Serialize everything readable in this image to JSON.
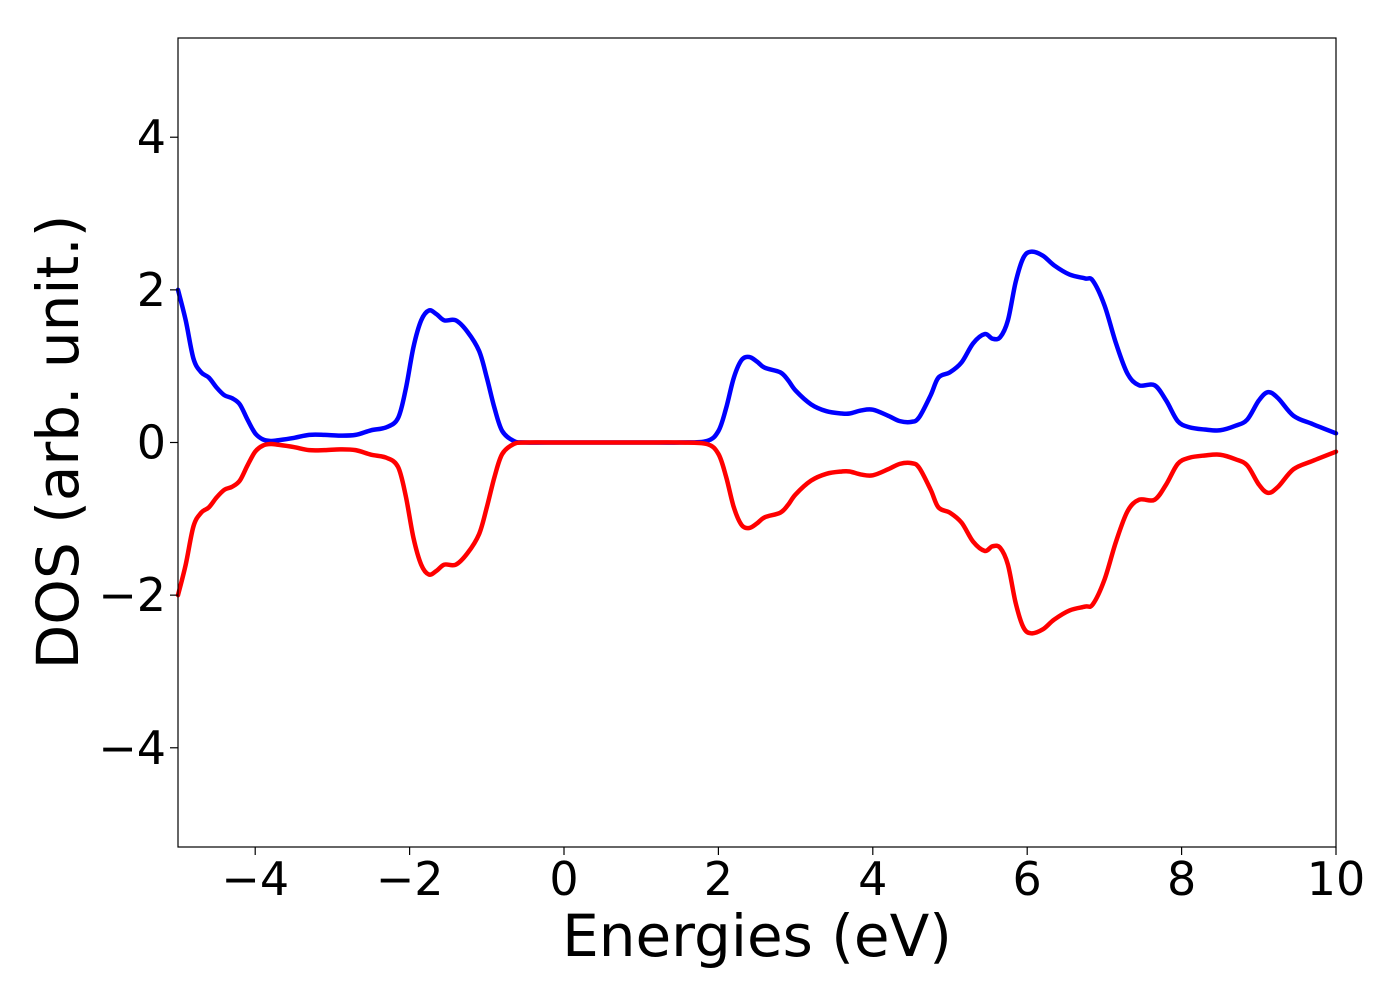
{
  "chart_data": {
    "type": "line",
    "title": "",
    "xlabel": "Energies (eV)",
    "ylabel": "DOS (arb. unit.)",
    "xlim": [
      -5,
      10
    ],
    "ylim": [
      -5.3,
      5.3
    ],
    "xticks": [
      -4,
      -2,
      0,
      2,
      4,
      6,
      8,
      10
    ],
    "xtick_labels": [
      "−4",
      "−2",
      "0",
      "2",
      "4",
      "6",
      "8",
      "10"
    ],
    "yticks": [
      -4,
      -2,
      0,
      2,
      4
    ],
    "ytick_labels": [
      "−4",
      "−2",
      "0",
      "2",
      "4"
    ],
    "grid": false,
    "legend": "none",
    "series": [
      {
        "color": "#0000ff",
        "points": [
          [
            -5.0,
            2.0
          ],
          [
            -4.9,
            1.6
          ],
          [
            -4.8,
            1.1
          ],
          [
            -4.7,
            0.92
          ],
          [
            -4.6,
            0.85
          ],
          [
            -4.5,
            0.72
          ],
          [
            -4.4,
            0.62
          ],
          [
            -4.3,
            0.58
          ],
          [
            -4.2,
            0.5
          ],
          [
            -4.1,
            0.3
          ],
          [
            -4.0,
            0.12
          ],
          [
            -3.9,
            0.04
          ],
          [
            -3.8,
            0.02
          ],
          [
            -3.7,
            0.03
          ],
          [
            -3.5,
            0.06
          ],
          [
            -3.3,
            0.1
          ],
          [
            -3.1,
            0.1
          ],
          [
            -2.9,
            0.09
          ],
          [
            -2.7,
            0.1
          ],
          [
            -2.5,
            0.16
          ],
          [
            -2.3,
            0.2
          ],
          [
            -2.15,
            0.32
          ],
          [
            -2.05,
            0.7
          ],
          [
            -1.95,
            1.25
          ],
          [
            -1.85,
            1.6
          ],
          [
            -1.75,
            1.73
          ],
          [
            -1.65,
            1.68
          ],
          [
            -1.55,
            1.6
          ],
          [
            -1.4,
            1.6
          ],
          [
            -1.25,
            1.45
          ],
          [
            -1.1,
            1.2
          ],
          [
            -1.0,
            0.85
          ],
          [
            -0.9,
            0.45
          ],
          [
            -0.8,
            0.15
          ],
          [
            -0.65,
            0.02
          ],
          [
            -0.5,
            0.0
          ],
          [
            0.0,
            0.0
          ],
          [
            0.5,
            0.0
          ],
          [
            1.0,
            0.0
          ],
          [
            1.5,
            0.0
          ],
          [
            1.85,
            0.02
          ],
          [
            2.0,
            0.15
          ],
          [
            2.1,
            0.45
          ],
          [
            2.2,
            0.85
          ],
          [
            2.3,
            1.08
          ],
          [
            2.4,
            1.12
          ],
          [
            2.5,
            1.06
          ],
          [
            2.6,
            0.98
          ],
          [
            2.8,
            0.92
          ],
          [
            2.9,
            0.82
          ],
          [
            3.0,
            0.68
          ],
          [
            3.2,
            0.5
          ],
          [
            3.4,
            0.41
          ],
          [
            3.6,
            0.38
          ],
          [
            3.7,
            0.38
          ],
          [
            3.85,
            0.42
          ],
          [
            4.0,
            0.43
          ],
          [
            4.2,
            0.35
          ],
          [
            4.35,
            0.28
          ],
          [
            4.5,
            0.27
          ],
          [
            4.6,
            0.33
          ],
          [
            4.75,
            0.62
          ],
          [
            4.85,
            0.85
          ],
          [
            5.0,
            0.92
          ],
          [
            5.15,
            1.05
          ],
          [
            5.3,
            1.3
          ],
          [
            5.45,
            1.42
          ],
          [
            5.55,
            1.36
          ],
          [
            5.65,
            1.38
          ],
          [
            5.75,
            1.6
          ],
          [
            5.85,
            2.1
          ],
          [
            5.95,
            2.42
          ],
          [
            6.05,
            2.5
          ],
          [
            6.2,
            2.45
          ],
          [
            6.35,
            2.32
          ],
          [
            6.55,
            2.2
          ],
          [
            6.75,
            2.15
          ],
          [
            6.85,
            2.12
          ],
          [
            7.0,
            1.8
          ],
          [
            7.15,
            1.3
          ],
          [
            7.3,
            0.9
          ],
          [
            7.45,
            0.75
          ],
          [
            7.65,
            0.75
          ],
          [
            7.8,
            0.55
          ],
          [
            7.95,
            0.28
          ],
          [
            8.1,
            0.2
          ],
          [
            8.3,
            0.17
          ],
          [
            8.5,
            0.16
          ],
          [
            8.7,
            0.22
          ],
          [
            8.85,
            0.3
          ],
          [
            9.0,
            0.55
          ],
          [
            9.12,
            0.66
          ],
          [
            9.25,
            0.58
          ],
          [
            9.45,
            0.35
          ],
          [
            9.7,
            0.24
          ],
          [
            10.0,
            0.12
          ]
        ]
      },
      {
        "color": "#ff0000",
        "points": [
          [
            -5.0,
            -2.0
          ],
          [
            -4.9,
            -1.6
          ],
          [
            -4.8,
            -1.1
          ],
          [
            -4.7,
            -0.92
          ],
          [
            -4.6,
            -0.85
          ],
          [
            -4.5,
            -0.72
          ],
          [
            -4.4,
            -0.62
          ],
          [
            -4.3,
            -0.58
          ],
          [
            -4.2,
            -0.5
          ],
          [
            -4.1,
            -0.3
          ],
          [
            -4.0,
            -0.12
          ],
          [
            -3.9,
            -0.04
          ],
          [
            -3.8,
            -0.02
          ],
          [
            -3.7,
            -0.03
          ],
          [
            -3.5,
            -0.06
          ],
          [
            -3.3,
            -0.1
          ],
          [
            -3.1,
            -0.1
          ],
          [
            -2.9,
            -0.09
          ],
          [
            -2.7,
            -0.1
          ],
          [
            -2.5,
            -0.16
          ],
          [
            -2.3,
            -0.2
          ],
          [
            -2.15,
            -0.32
          ],
          [
            -2.05,
            -0.7
          ],
          [
            -1.95,
            -1.25
          ],
          [
            -1.85,
            -1.6
          ],
          [
            -1.75,
            -1.73
          ],
          [
            -1.65,
            -1.68
          ],
          [
            -1.55,
            -1.6
          ],
          [
            -1.4,
            -1.6
          ],
          [
            -1.25,
            -1.45
          ],
          [
            -1.1,
            -1.2
          ],
          [
            -1.0,
            -0.85
          ],
          [
            -0.9,
            -0.45
          ],
          [
            -0.8,
            -0.15
          ],
          [
            -0.65,
            -0.02
          ],
          [
            -0.5,
            0.0
          ],
          [
            0.0,
            0.0
          ],
          [
            0.5,
            0.0
          ],
          [
            1.0,
            0.0
          ],
          [
            1.5,
            0.0
          ],
          [
            1.85,
            -0.02
          ],
          [
            2.0,
            -0.15
          ],
          [
            2.1,
            -0.45
          ],
          [
            2.2,
            -0.85
          ],
          [
            2.3,
            -1.08
          ],
          [
            2.4,
            -1.12
          ],
          [
            2.5,
            -1.06
          ],
          [
            2.6,
            -0.98
          ],
          [
            2.8,
            -0.92
          ],
          [
            2.9,
            -0.82
          ],
          [
            3.0,
            -0.68
          ],
          [
            3.2,
            -0.5
          ],
          [
            3.4,
            -0.41
          ],
          [
            3.6,
            -0.38
          ],
          [
            3.7,
            -0.38
          ],
          [
            3.85,
            -0.42
          ],
          [
            4.0,
            -0.43
          ],
          [
            4.2,
            -0.35
          ],
          [
            4.35,
            -0.28
          ],
          [
            4.5,
            -0.27
          ],
          [
            4.6,
            -0.33
          ],
          [
            4.75,
            -0.62
          ],
          [
            4.85,
            -0.85
          ],
          [
            5.0,
            -0.92
          ],
          [
            5.15,
            -1.05
          ],
          [
            5.3,
            -1.3
          ],
          [
            5.45,
            -1.42
          ],
          [
            5.55,
            -1.36
          ],
          [
            5.65,
            -1.38
          ],
          [
            5.75,
            -1.6
          ],
          [
            5.85,
            -2.1
          ],
          [
            5.95,
            -2.42
          ],
          [
            6.05,
            -2.5
          ],
          [
            6.2,
            -2.45
          ],
          [
            6.35,
            -2.32
          ],
          [
            6.55,
            -2.2
          ],
          [
            6.75,
            -2.15
          ],
          [
            6.85,
            -2.12
          ],
          [
            7.0,
            -1.8
          ],
          [
            7.15,
            -1.3
          ],
          [
            7.3,
            -0.9
          ],
          [
            7.45,
            -0.75
          ],
          [
            7.65,
            -0.75
          ],
          [
            7.8,
            -0.55
          ],
          [
            7.95,
            -0.28
          ],
          [
            8.1,
            -0.2
          ],
          [
            8.3,
            -0.17
          ],
          [
            8.5,
            -0.16
          ],
          [
            8.7,
            -0.22
          ],
          [
            8.85,
            -0.3
          ],
          [
            9.0,
            -0.55
          ],
          [
            9.12,
            -0.66
          ],
          [
            9.25,
            -0.58
          ],
          [
            9.45,
            -0.35
          ],
          [
            9.7,
            -0.24
          ],
          [
            10.0,
            -0.12
          ]
        ]
      }
    ]
  }
}
